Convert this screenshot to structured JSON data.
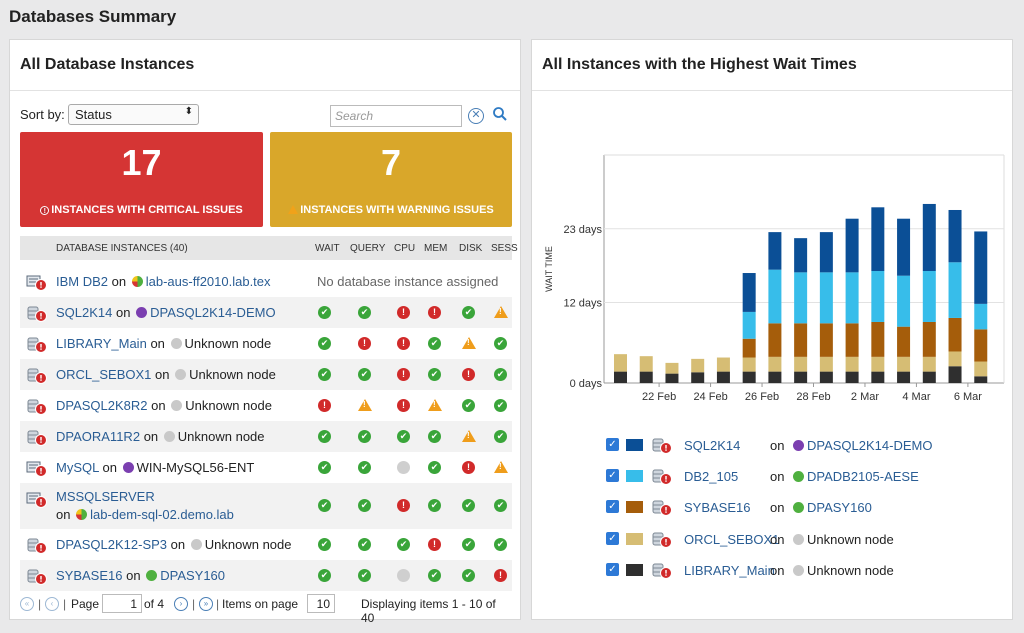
{
  "page_title": "Databases Summary",
  "left_panel": {
    "title": "All Database Instances",
    "sort_label": "Sort by:",
    "sort_value": "Status",
    "search_placeholder": "Search",
    "critical": {
      "count": "17",
      "caption": "INSTANCES WITH CRITICAL ISSUES"
    },
    "warning": {
      "count": "7",
      "caption": "INSTANCES WITH WARNING ISSUES"
    },
    "columns": {
      "instances": "DATABASE INSTANCES (40)",
      "wait": "WAIT",
      "query": "QUERY",
      "cpu": "CPU",
      "mem": "MEM",
      "disk": "DISK",
      "sess": "SESS"
    },
    "rows": [
      {
        "name": "IBM DB2",
        "on": "on",
        "node": "lab-aus-ff2010.lab.tex",
        "node_link": true,
        "node_status": "multi",
        "na_text": "No database instance assigned"
      },
      {
        "name": "SQL2K14",
        "on": "on",
        "node": "DPASQL2K14-DEMO",
        "node_link": true,
        "node_status": "purple",
        "status": [
          "ok",
          "ok",
          "crit",
          "crit",
          "ok",
          "warn"
        ]
      },
      {
        "name": "LIBRARY_Main",
        "on": "on",
        "node": "Unknown node",
        "node_link": false,
        "node_status": "grey",
        "status": [
          "ok",
          "crit",
          "crit",
          "ok",
          "warn",
          "ok"
        ]
      },
      {
        "name": "ORCL_SEBOX1",
        "on": "on",
        "node": "Unknown node",
        "node_link": false,
        "node_status": "grey",
        "status": [
          "ok",
          "ok",
          "crit",
          "ok",
          "crit",
          "ok"
        ]
      },
      {
        "name": "DPASQL2K8R2",
        "on": "on",
        "node": "Unknown node",
        "node_link": false,
        "node_status": "grey",
        "status": [
          "crit",
          "warn",
          "crit",
          "warn",
          "ok",
          "ok"
        ]
      },
      {
        "name": "DPAORA11R2",
        "on": "on",
        "node": "Unknown node",
        "node_link": false,
        "node_status": "grey",
        "status": [
          "ok",
          "ok",
          "ok",
          "ok",
          "warn",
          "ok"
        ]
      },
      {
        "name": "MySQL",
        "on": "on",
        "node": "WIN-MySQL56-ENT",
        "node_link": false,
        "node_status": "purple",
        "status": [
          "ok",
          "ok",
          "unk",
          "ok",
          "crit",
          "warn"
        ]
      },
      {
        "name": "MSSQLSERVER",
        "on": "on",
        "node": "lab-dem-sql-02.demo.lab",
        "node_link": true,
        "node_status": "multi",
        "status": [
          "ok",
          "ok",
          "crit",
          "ok",
          "ok",
          "ok"
        ]
      },
      {
        "name": "DPASQL2K12-SP3",
        "on": "on",
        "node": "Unknown node",
        "node_link": false,
        "node_status": "grey",
        "status": [
          "ok",
          "ok",
          "ok",
          "crit",
          "ok",
          "ok"
        ]
      },
      {
        "name": "SYBASE16",
        "on": "on",
        "node": "DPASY160",
        "node_link": true,
        "node_status": "green",
        "status": [
          "ok",
          "ok",
          "unk",
          "ok",
          "ok",
          "crit"
        ]
      }
    ],
    "pager": {
      "page_label": "Page",
      "page": "1",
      "of": "of 4",
      "items_label": "Items on page",
      "items_per_page": "10",
      "display": "Displaying items 1 - 10 of 40"
    }
  },
  "right_panel": {
    "title": "All Instances with the Highest Wait Times",
    "legend": [
      {
        "name": "SQL2K14",
        "on": "on",
        "node": "DPASQL2K14-DEMO",
        "node_link": true,
        "node_status": "purple",
        "color": "#0b4f96"
      },
      {
        "name": "DB2_105",
        "on": "on",
        "node": "DPADB2105-AESE",
        "node_link": true,
        "node_status": "green",
        "color": "#37bdea"
      },
      {
        "name": "SYBASE16",
        "on": "on",
        "node": "DPASY160",
        "node_link": true,
        "node_status": "green",
        "color": "#a55d0b"
      },
      {
        "name": "ORCL_SEBOX1",
        "on": "on",
        "node": "Unknown node",
        "node_link": false,
        "node_status": "grey",
        "color": "#d6bd74"
      },
      {
        "name": "LIBRARY_Main",
        "on": "on",
        "node": "Unknown node",
        "node_link": false,
        "node_status": "grey",
        "color": "#2f2f2f"
      }
    ]
  },
  "chart_data": {
    "type": "bar",
    "stacked": true,
    "title": "All Instances with the Highest Wait Times",
    "ylabel": "WAIT TIME",
    "xlabel": "",
    "y_ticks": [
      "0 days",
      "12 days",
      "23 days"
    ],
    "y_tick_values": [
      0,
      12,
      23
    ],
    "ylim": [
      0,
      34
    ],
    "x_tick_labels": [
      "22 Feb",
      "24 Feb",
      "26 Feb",
      "28 Feb",
      "2 Mar",
      "4 Mar",
      "6 Mar"
    ],
    "x_tick_indices": [
      1,
      3,
      5,
      7,
      9,
      11,
      13
    ],
    "categories": [
      "21 Feb",
      "22 Feb",
      "23 Feb",
      "24 Feb",
      "25 Feb",
      "26 Feb",
      "27 Feb",
      "28 Feb",
      "1 Mar",
      "2 Mar",
      "3 Mar",
      "4 Mar",
      "5 Mar",
      "6 Mar",
      "7 Mar"
    ],
    "grid": true,
    "series": [
      {
        "name": "LIBRARY_Main",
        "values": [
          1.7,
          1.7,
          1.4,
          1.6,
          1.7,
          1.7,
          1.7,
          1.7,
          1.7,
          1.7,
          1.7,
          1.7,
          1.7,
          2.5,
          1.0
        ]
      },
      {
        "name": "ORCL_SEBOX1",
        "values": [
          2.6,
          2.3,
          1.6,
          2.0,
          2.1,
          2.1,
          2.2,
          2.2,
          2.2,
          2.2,
          2.2,
          2.2,
          2.2,
          2.2,
          2.2
        ]
      },
      {
        "name": "SYBASE16",
        "values": [
          0,
          0,
          0,
          0,
          0,
          2.8,
          5.0,
          5.0,
          5.0,
          5.0,
          5.2,
          4.5,
          5.2,
          5.0,
          4.8
        ]
      },
      {
        "name": "DB2_105",
        "values": [
          0,
          0,
          0,
          0,
          0,
          4.0,
          8.0,
          7.6,
          7.6,
          7.6,
          7.6,
          7.6,
          7.6,
          8.3,
          3.8
        ]
      },
      {
        "name": "SQL2K14",
        "values": [
          0,
          0,
          0,
          0,
          0,
          5.8,
          5.6,
          5.1,
          6.0,
          8.0,
          9.5,
          8.5,
          10.0,
          7.8,
          10.8
        ]
      }
    ]
  }
}
